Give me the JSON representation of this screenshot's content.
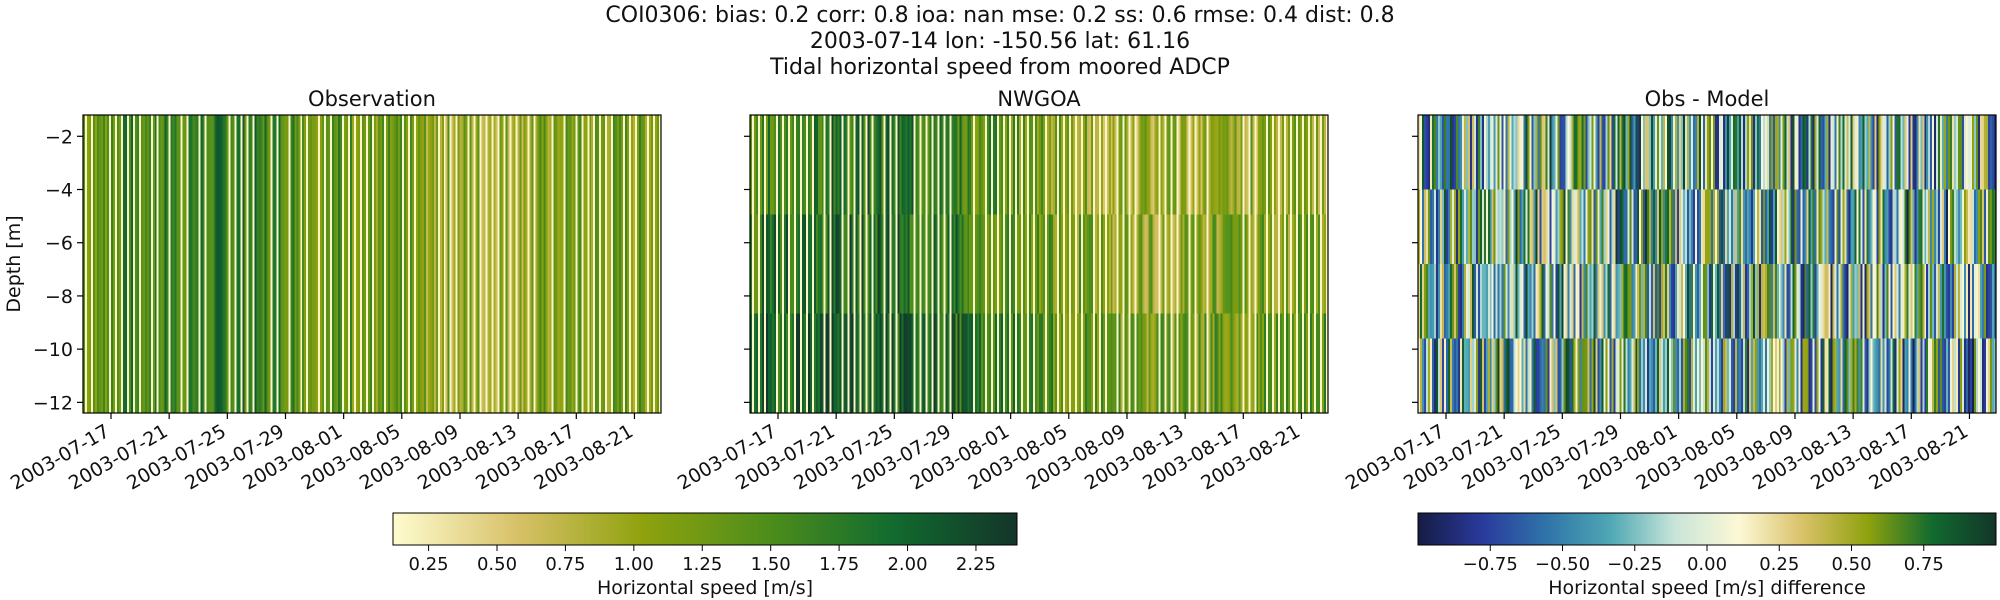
{
  "suptitle": {
    "line1": "COI0306: bias: 0.2  corr: 0.8  ioa: nan  mse: 0.2  ss: 0.6  rmse: 0.4  dist: 0.8",
    "line2": "2003-07-14 lon: -150.56 lat: 61.16",
    "line3": "Tidal horizontal speed from moored ADCP"
  },
  "chart_data": [
    {
      "type": "heatmap",
      "title": "Observation",
      "xlabel": "",
      "ylabel": "Depth [m]",
      "ylim": [
        -12.4,
        -1.2
      ],
      "yticks": [
        -2,
        -4,
        -6,
        -8,
        -10,
        -12
      ],
      "xticks": [
        "2003-07-17",
        "2003-07-21",
        "2003-07-25",
        "2003-07-29",
        "2003-08-01",
        "2003-08-05",
        "2003-08-09",
        "2003-08-13",
        "2003-08-17",
        "2003-08-21"
      ],
      "colormap": "speed",
      "value_range": [
        0.12,
        2.4
      ],
      "description": "Horizontal speed vs time and depth"
    },
    {
      "type": "heatmap",
      "title": "NWGOA",
      "xlabel": "",
      "ylabel": "",
      "ylim": [
        -12.4,
        -1.2
      ],
      "yticks": [
        -2,
        -4,
        -6,
        -8,
        -10,
        -12
      ],
      "xticks": [
        "2003-07-17",
        "2003-07-21",
        "2003-07-25",
        "2003-07-29",
        "2003-08-01",
        "2003-08-05",
        "2003-08-09",
        "2003-08-13",
        "2003-08-17",
        "2003-08-21"
      ],
      "colormap": "speed",
      "value_range": [
        0.12,
        2.4
      ]
    },
    {
      "type": "heatmap",
      "title": "Obs - Model",
      "xlabel": "",
      "ylabel": "",
      "ylim": [
        -12.4,
        -1.2
      ],
      "yticks": [
        -2,
        -4,
        -6,
        -8,
        -10,
        -12
      ],
      "xticks": [
        "2003-07-17",
        "2003-07-21",
        "2003-07-25",
        "2003-07-29",
        "2003-08-01",
        "2003-08-05",
        "2003-08-09",
        "2003-08-13",
        "2003-08-17",
        "2003-08-21"
      ],
      "colormap": "delta",
      "value_range": [
        -1.0,
        1.0
      ]
    }
  ],
  "colorbars": [
    {
      "label": "Horizontal speed [m/s]",
      "range": [
        0.12,
        2.4
      ],
      "ticks": [
        "0.25",
        "0.50",
        "0.75",
        "1.00",
        "1.25",
        "1.50",
        "1.75",
        "2.00",
        "2.25"
      ],
      "tick_values": [
        0.25,
        0.5,
        0.75,
        1.0,
        1.25,
        1.5,
        1.75,
        2.0,
        2.25
      ],
      "stops": [
        "#fefccf",
        "#d7c168",
        "#8fa20e",
        "#4e8e1b",
        "#126b2f",
        "#13352a"
      ]
    },
    {
      "label": "Horizontal speed [m/s] difference",
      "range": [
        -1.0,
        1.0
      ],
      "ticks": [
        "−0.75",
        "−0.50",
        "−0.25",
        "0.00",
        "0.25",
        "0.50",
        "0.75"
      ],
      "tick_values": [
        -0.75,
        -0.5,
        -0.25,
        0.0,
        0.25,
        0.5,
        0.75
      ],
      "stops": [
        "#151c44",
        "#2a3a9c",
        "#2f74a9",
        "#4fa8b4",
        "#c9e5d9",
        "#fdf8d5",
        "#d9c168",
        "#8fa20e",
        "#126b2f",
        "#13352a"
      ]
    }
  ]
}
